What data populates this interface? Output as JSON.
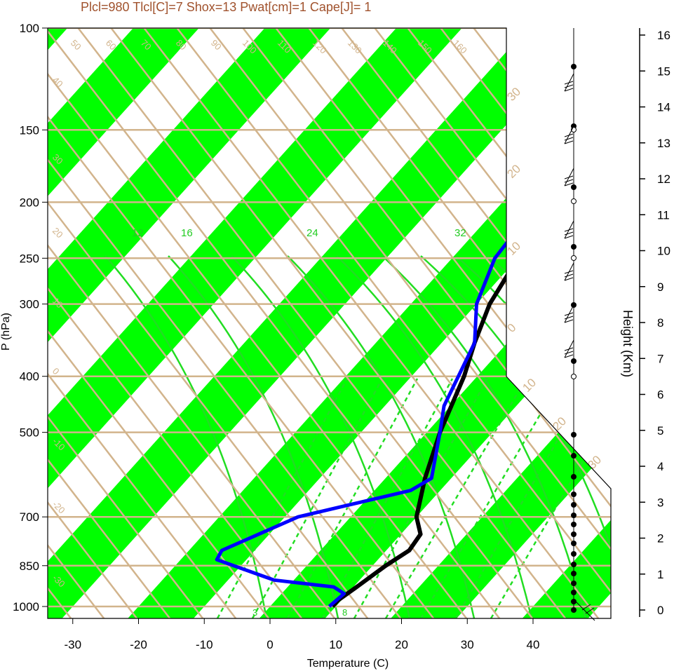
{
  "title": "Plcl=980 Tlcl[C]=7 Shox=13 Pwat[cm]=1 Cape[J]= 1",
  "chart_data": {
    "type": "line",
    "subtype": "skew-T log-P thermodynamic diagram",
    "xlabel": "Temperature (C)",
    "ylabel": "P (hPa)",
    "y2label": "Height (Km)",
    "x_ticks": [
      "-30",
      "-20",
      "-10",
      "0",
      "10",
      "20",
      "30",
      "40"
    ],
    "y_ticks": [
      "100",
      "150",
      "200",
      "250",
      "300",
      "400",
      "500",
      "700",
      "850",
      "1000"
    ],
    "height_ticks": [
      "0",
      "1",
      "2",
      "3",
      "4",
      "5",
      "6",
      "7",
      "8",
      "9",
      "10",
      "11",
      "12",
      "13",
      "14",
      "15",
      "16"
    ],
    "dry_adiabat_labels": [
      "50",
      "60",
      "70",
      "80",
      "90",
      "100",
      "110",
      "120",
      "130",
      "140",
      "150",
      "160"
    ],
    "temperature_labels": [
      "40",
      "30",
      "20",
      "10",
      "0",
      "-10",
      "-20",
      "-30"
    ],
    "right_temperature_labels": [
      "30",
      "20",
      "10",
      "0",
      "10",
      "20",
      "30"
    ],
    "moist_adiabat_labels": [
      "12",
      "16",
      "24",
      "32"
    ],
    "mixing_ratio_labels": [
      "3",
      "8"
    ],
    "colors": {
      "temperature": "#000000",
      "dewpoint": "#0000ff",
      "isotherm_band": "#00ff00",
      "adiabat": "#d2b48c",
      "moist_adiabat": "#22dd22",
      "title": "#a0522d"
    },
    "series": [
      {
        "id": "temperature",
        "x": [
          9.5,
          9.5,
          10.5,
          12,
          13.5,
          13,
          10,
          6,
          2,
          -2,
          -5,
          -8,
          -10,
          -10,
          -7,
          -3,
          3,
          8,
          11,
          15.5
        ],
        "y": [
          1000,
          975,
          925,
          850,
          800,
          750,
          700,
          600,
          500,
          400,
          350,
          300,
          250,
          225,
          200,
          175,
          150,
          130,
          120,
          110
        ]
      },
      {
        "id": "dewpoint",
        "x": [
          9,
          9.5,
          7,
          -3,
          -14.5,
          -15,
          -8,
          5.5,
          7,
          2,
          -1,
          -5,
          -10,
          -13.5,
          -14,
          -13,
          -13.5,
          -19.5,
          -14,
          -8
        ],
        "y": [
          1000,
          950,
          925,
          900,
          830,
          800,
          700,
          630,
          600,
          500,
          450,
          350,
          300,
          250,
          225,
          200,
          185,
          160,
          130,
          110
        ]
      }
    ],
    "xlim": [
      -33,
      52
    ],
    "ylim": [
      1050,
      100
    ]
  }
}
